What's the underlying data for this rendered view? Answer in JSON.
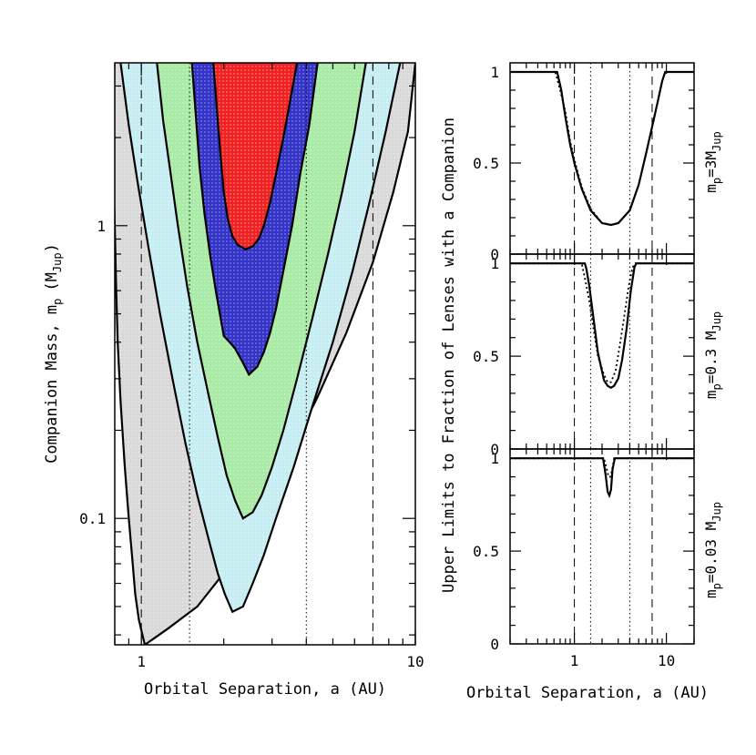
{
  "chart_data": [
    {
      "type": "area",
      "xlabel": "Orbital Separation, a (AU)",
      "ylabel": "Companion Mass, m",
      "ylabel_sub": "p",
      "ylabel_unit": "(M",
      "ylabel_unit_sub": "Jup",
      "ylabel_unit_end": ")",
      "x_scale": "log",
      "y_scale": "log",
      "xlim": [
        0.8,
        10
      ],
      "ylim": [
        0.037,
        3.6
      ],
      "x_tick_labels": [
        "1",
        "10"
      ],
      "y_tick_labels": [
        "1",
        "0.1"
      ],
      "vertical_lines": [
        {
          "x": 1.0,
          "style": "dashed"
        },
        {
          "x": 1.5,
          "style": "dotted"
        },
        {
          "x": 4.0,
          "style": "dotted"
        },
        {
          "x": 7.0,
          "style": "dashed"
        }
      ],
      "regions": [
        {
          "color": "#d9d9d9",
          "outline": true,
          "left": [
            [
              1.03,
              0.037
            ],
            [
              0.98,
              0.045
            ],
            [
              0.95,
              0.055
            ],
            [
              0.93,
              0.07
            ],
            [
              0.9,
              0.1
            ],
            [
              0.87,
              0.15
            ],
            [
              0.84,
              0.25
            ],
            [
              0.82,
              0.4
            ],
            [
              0.81,
              0.6
            ],
            [
              0.8,
              1.0
            ],
            [
              0.79,
              1.5
            ],
            [
              0.78,
              2.5
            ],
            [
              0.77,
              3.6
            ]
          ],
          "right": [
            [
              1.03,
              0.037
            ],
            [
              1.25,
              0.042
            ],
            [
              1.6,
              0.05
            ],
            [
              2.0,
              0.065
            ],
            [
              2.6,
              0.1
            ],
            [
              3.4,
              0.16
            ],
            [
              4.4,
              0.26
            ],
            [
              5.6,
              0.43
            ],
            [
              7.0,
              0.75
            ],
            [
              8.3,
              1.3
            ],
            [
              9.4,
              2.1
            ],
            [
              10.0,
              3.6
            ]
          ]
        },
        {
          "color": "#c6eef2",
          "outline": true,
          "left": [
            [
              2.15,
              0.048
            ],
            [
              2.02,
              0.055
            ],
            [
              1.9,
              0.065
            ],
            [
              1.76,
              0.085
            ],
            [
              1.6,
              0.12
            ],
            [
              1.45,
              0.18
            ],
            [
              1.3,
              0.3
            ],
            [
              1.17,
              0.5
            ],
            [
              1.06,
              0.85
            ],
            [
              0.97,
              1.4
            ],
            [
              0.9,
              2.2
            ],
            [
              0.84,
              3.6
            ]
          ],
          "right": [
            [
              2.15,
              0.048
            ],
            [
              2.35,
              0.05
            ],
            [
              2.55,
              0.06
            ],
            [
              2.8,
              0.075
            ],
            [
              3.1,
              0.1
            ],
            [
              3.6,
              0.15
            ],
            [
              4.2,
              0.24
            ],
            [
              5.0,
              0.4
            ],
            [
              5.9,
              0.7
            ],
            [
              6.8,
              1.2
            ],
            [
              7.8,
              2.1
            ],
            [
              8.8,
              3.6
            ]
          ]
        },
        {
          "color": "#a9eaa6",
          "outline": true,
          "left": [
            [
              2.35,
              0.1
            ],
            [
              2.2,
              0.115
            ],
            [
              2.05,
              0.14
            ],
            [
              1.9,
              0.19
            ],
            [
              1.75,
              0.27
            ],
            [
              1.6,
              0.4
            ],
            [
              1.47,
              0.62
            ],
            [
              1.36,
              1.0
            ],
            [
              1.28,
              1.5
            ],
            [
              1.2,
              2.3
            ],
            [
              1.14,
              3.6
            ]
          ],
          "right": [
            [
              2.35,
              0.1
            ],
            [
              2.55,
              0.105
            ],
            [
              2.75,
              0.12
            ],
            [
              3.0,
              0.15
            ],
            [
              3.3,
              0.2
            ],
            [
              3.7,
              0.3
            ],
            [
              4.2,
              0.48
            ],
            [
              4.8,
              0.8
            ],
            [
              5.4,
              1.3
            ],
            [
              6.0,
              2.1
            ],
            [
              6.6,
              3.6
            ]
          ]
        },
        {
          "color": "#3434c8",
          "outline": true,
          "left": [
            [
              2.47,
              0.31
            ],
            [
              2.35,
              0.34
            ],
            [
              2.2,
              0.38
            ],
            [
              2.1,
              0.4
            ],
            [
              2.0,
              0.42
            ],
            [
              1.95,
              0.48
            ],
            [
              1.87,
              0.6
            ],
            [
              1.78,
              0.8
            ],
            [
              1.7,
              1.1
            ],
            [
              1.63,
              1.6
            ],
            [
              1.58,
              2.4
            ],
            [
              1.53,
              3.6
            ]
          ],
          "right": [
            [
              2.47,
              0.31
            ],
            [
              2.65,
              0.33
            ],
            [
              2.8,
              0.37
            ],
            [
              2.95,
              0.43
            ],
            [
              3.1,
              0.52
            ],
            [
              3.3,
              0.7
            ],
            [
              3.55,
              1.0
            ],
            [
              3.8,
              1.5
            ],
            [
              4.1,
              2.2
            ],
            [
              4.4,
              3.6
            ]
          ]
        },
        {
          "color": "#ee2222",
          "outline": true,
          "left": [
            [
              2.4,
              0.83
            ],
            [
              2.25,
              0.86
            ],
            [
              2.15,
              0.92
            ],
            [
              2.07,
              1.05
            ],
            [
              2.0,
              1.3
            ],
            [
              1.95,
              1.7
            ],
            [
              1.9,
              2.3
            ],
            [
              1.86,
              3.0
            ],
            [
              1.83,
              3.6
            ]
          ],
          "right": [
            [
              2.4,
              0.83
            ],
            [
              2.55,
              0.85
            ],
            [
              2.68,
              0.9
            ],
            [
              2.8,
              1.0
            ],
            [
              2.95,
              1.2
            ],
            [
              3.1,
              1.5
            ],
            [
              3.3,
              2.0
            ],
            [
              3.5,
              2.7
            ],
            [
              3.7,
              3.6
            ]
          ]
        }
      ]
    },
    {
      "type": "line",
      "xlabel": "Orbital Separation, a (AU)",
      "shared_ylabel": "Upper Limits to Fraction of Lenses with a Companion",
      "x_scale": "log",
      "xlim": [
        0.2,
        20
      ],
      "x_tick_labels": [
        "1",
        "10"
      ],
      "vertical_lines": [
        {
          "x": 1.0,
          "style": "dashed"
        },
        {
          "x": 1.5,
          "style": "dotted"
        },
        {
          "x": 4.0,
          "style": "dotted"
        },
        {
          "x": 7.0,
          "style": "dashed"
        }
      ],
      "panels": [
        {
          "label_pre": "m",
          "label_sub": "p",
          "label_mid": "=3M",
          "label_sub2": "Jup",
          "ylim": [
            0,
            1.05
          ],
          "y_tick_labels": [
            "1",
            "0.5",
            "0"
          ],
          "series": [
            {
              "style": "solid",
              "x": [
                0.2,
                0.55,
                0.65,
                0.72,
                0.8,
                0.9,
                1.0,
                1.2,
                1.5,
                2.0,
                2.5,
                3.0,
                4.0,
                5.0,
                6.0,
                7.0,
                8.0,
                9.0,
                9.7,
                10.5,
                20
              ],
              "y": [
                1,
                1,
                1,
                0.9,
                0.75,
                0.6,
                0.5,
                0.36,
                0.24,
                0.17,
                0.16,
                0.17,
                0.24,
                0.38,
                0.55,
                0.7,
                0.83,
                0.95,
                1,
                1,
                1
              ]
            },
            {
              "style": "dotted",
              "x": [
                0.2,
                0.55,
                0.62,
                0.7,
                0.8,
                0.9,
                1.0,
                1.2,
                1.5,
                2.0,
                2.5,
                3.0,
                4.0,
                5.0,
                6.0,
                7.0,
                8.0,
                9.0,
                9.7,
                10.5,
                20
              ],
              "y": [
                1,
                1,
                1,
                0.9,
                0.78,
                0.62,
                0.52,
                0.37,
                0.25,
                0.17,
                0.16,
                0.17,
                0.24,
                0.38,
                0.55,
                0.7,
                0.83,
                0.95,
                1,
                1,
                1
              ]
            }
          ]
        },
        {
          "label_pre": "m",
          "label_sub": "p",
          "label_mid": "=0.3 M",
          "label_sub2": "Jup",
          "ylim": [
            0,
            1.05
          ],
          "y_tick_labels": [
            "1",
            "0.5",
            "0"
          ],
          "series": [
            {
              "style": "solid",
              "x": [
                0.2,
                1.3,
                1.35,
                1.45,
                1.6,
                1.8,
                2.1,
                2.3,
                2.5,
                2.7,
                3.0,
                3.3,
                3.7,
                4.1,
                4.5,
                4.7,
                20
              ],
              "y": [
                1,
                1,
                0.97,
                0.88,
                0.72,
                0.52,
                0.37,
                0.34,
                0.33,
                0.34,
                0.38,
                0.48,
                0.65,
                0.85,
                0.98,
                1,
                1
              ]
            },
            {
              "style": "dotted",
              "x": [
                0.2,
                1.2,
                1.3,
                1.45,
                1.6,
                1.8,
                2.1,
                2.3,
                2.5,
                2.8,
                3.1,
                3.5,
                3.9,
                4.3,
                4.6,
                20
              ],
              "y": [
                1,
                1,
                0.92,
                0.8,
                0.66,
                0.5,
                0.4,
                0.36,
                0.36,
                0.42,
                0.55,
                0.72,
                0.88,
                0.98,
                1,
                1
              ]
            }
          ]
        },
        {
          "label_pre": "m",
          "label_sub": "p",
          "label_mid": "=0.03 M",
          "label_sub2": "Jup",
          "ylim": [
            0,
            1.05
          ],
          "y_tick_labels": [
            "1",
            "0.5",
            "0"
          ],
          "series": [
            {
              "style": "solid",
              "x": [
                0.2,
                2.05,
                2.2,
                2.3,
                2.4,
                2.5,
                2.6,
                2.75,
                20
              ],
              "y": [
                1,
                1,
                0.9,
                0.82,
                0.8,
                0.83,
                0.94,
                1,
                1
              ]
            },
            {
              "style": "dotted",
              "x": [
                0.2,
                2.1,
                2.25,
                2.35,
                2.45,
                2.55,
                2.7,
                20
              ],
              "y": [
                1,
                1,
                0.94,
                0.9,
                0.9,
                0.93,
                1,
                1
              ]
            }
          ]
        }
      ]
    }
  ]
}
